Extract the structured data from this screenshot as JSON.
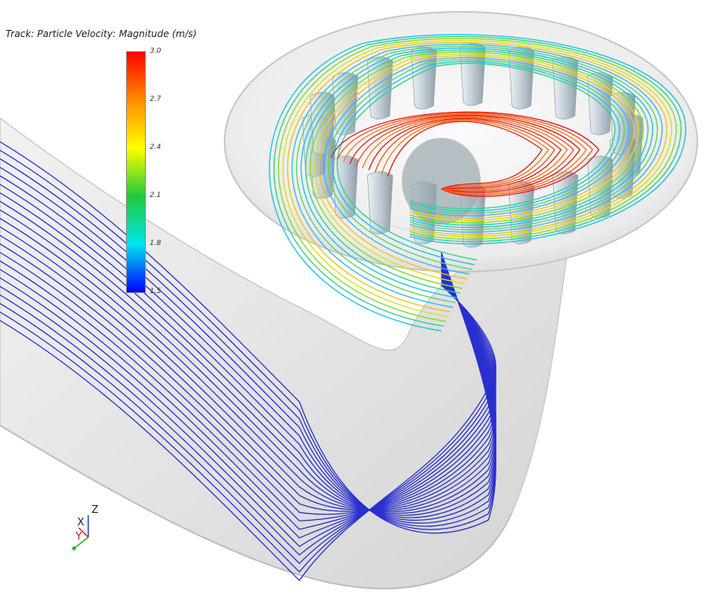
{
  "legend": {
    "title": "Track: Particle Velocity: Magnitude (m/s)",
    "ticks": [
      "3.0",
      "2.7",
      "2.4",
      "2.1",
      "1.8",
      "1.5"
    ],
    "colors": [
      "#ff0000",
      "#ff8c00",
      "#ffff00",
      "#22c83a",
      "#00e5ee",
      "#0000ff"
    ]
  },
  "triad": {
    "x": "X",
    "y": "Y",
    "z": "Z"
  },
  "colors": {
    "pipe": "#d6d6d6",
    "blade": "#a7b4be",
    "low": "#2a2fcf",
    "high": "#e21b1b"
  }
}
